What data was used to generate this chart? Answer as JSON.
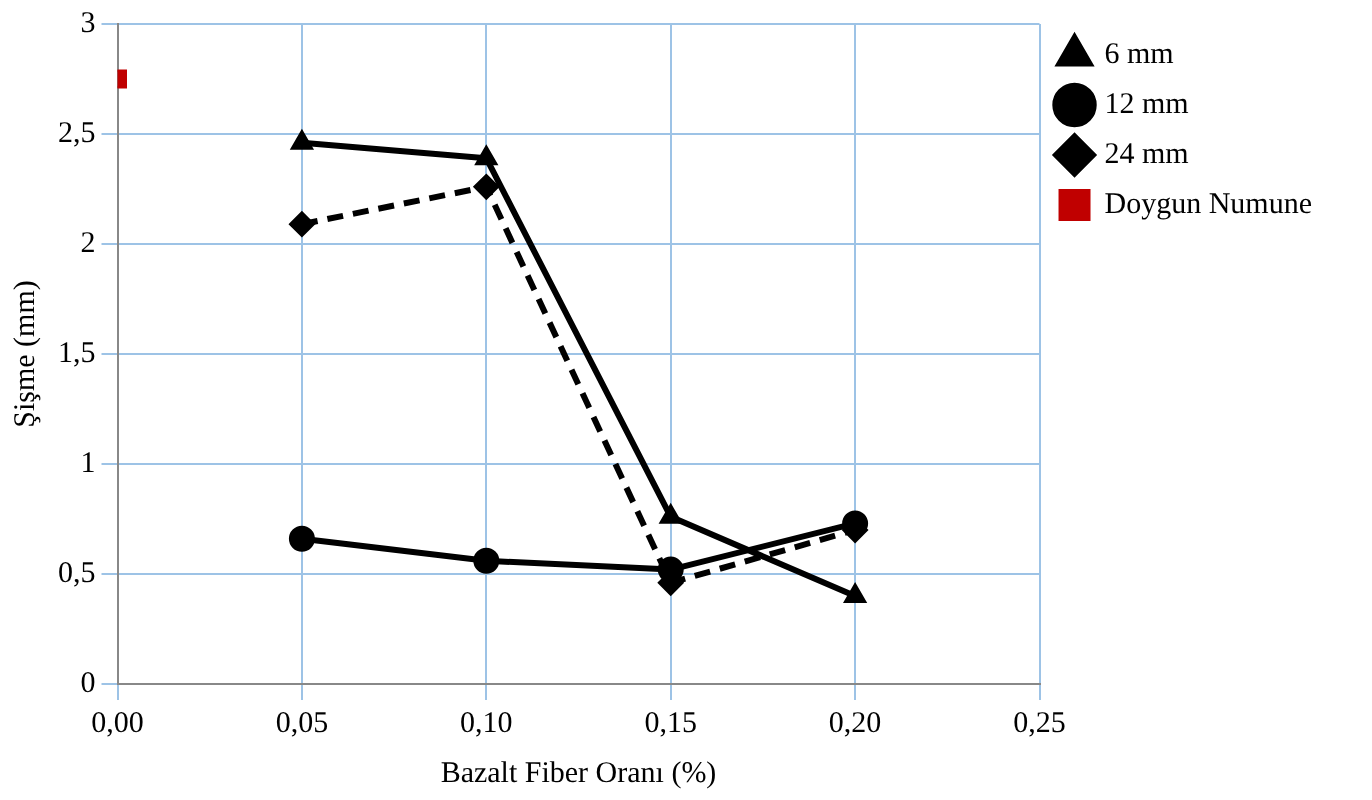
{
  "chart_data": {
    "type": "line",
    "xlabel": "Bazalt Fiber Oranı (%)",
    "ylabel": "Şişme (mm)",
    "xlim": [
      0,
      0.25
    ],
    "xticks": [
      {
        "value": 0,
        "label": "0,00"
      },
      {
        "value": 0.05,
        "label": "0,05"
      },
      {
        "value": 0.1,
        "label": "0,10"
      },
      {
        "value": 0.15,
        "label": "0,15"
      },
      {
        "value": 0.2,
        "label": "0,20"
      },
      {
        "value": 0.25,
        "label": "0,25"
      }
    ],
    "ylim": [
      0,
      3
    ],
    "yticks": [
      0,
      {
        "value": 0.5,
        "label": "0,5"
      },
      1,
      {
        "value": 1.5,
        "label": "1,5"
      },
      2,
      {
        "value": 2.5,
        "label": "2,5"
      },
      3
    ],
    "grid": true,
    "legend": "top right",
    "series": [
      {
        "name": "6 mm",
        "color": "#000000",
        "marker": "triangle",
        "line_style": "solid",
        "x": [
          0.05,
          0.1,
          0.15,
          0.2
        ],
        "values": [
          2.46,
          2.39,
          0.76,
          0.4
        ]
      },
      {
        "name": "12 mm",
        "color": "#000000",
        "marker": "circle",
        "line_style": "solid",
        "x": [
          0.05,
          0.1,
          0.15,
          0.2
        ],
        "values": [
          0.66,
          0.56,
          0.52,
          0.73
        ]
      },
      {
        "name": "24 mm",
        "color": "#000000",
        "marker": "diamond",
        "line_style": "dashed",
        "x": [
          0.05,
          0.1,
          0.15,
          0.2
        ],
        "values": [
          2.09,
          2.26,
          0.46,
          0.7
        ]
      },
      {
        "name": "Doygun Numune",
        "color": "#c00000",
        "marker": "square",
        "line_style": "solid",
        "x": [
          0
        ],
        "values": [
          2.75
        ]
      }
    ]
  }
}
